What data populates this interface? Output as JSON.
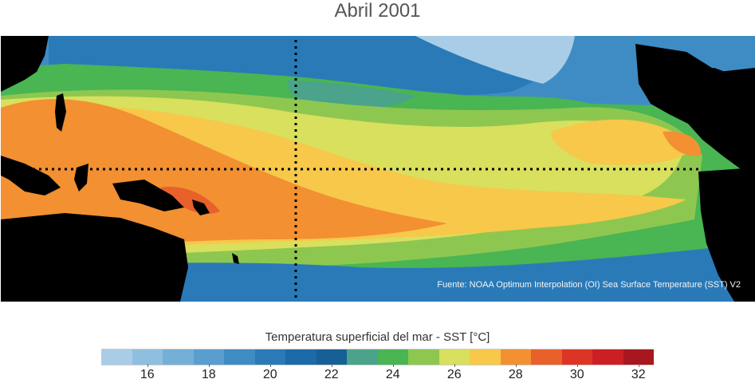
{
  "title": "Abril 2001",
  "source_note": "Fuente: NOAA Optimum Interpolation (OI) Sea Surface Temperature (SST) V2",
  "colorbar": {
    "title": "Temperatura superficial del mar - SST  [°C]",
    "tick_labels": [
      "16",
      "18",
      "20",
      "22",
      "24",
      "26",
      "28",
      "30",
      "32"
    ],
    "range": [
      15,
      33
    ],
    "colors": [
      "#a9cde6",
      "#8fbfe0",
      "#74afd8",
      "#5a9ecf",
      "#3f8cc4",
      "#2a7ab8",
      "#1c6aa8",
      "#176097",
      "#4aa38a",
      "#49b553",
      "#8ec750",
      "#d8e05e",
      "#f7c84a",
      "#f29032",
      "#e8602a",
      "#dc3525",
      "#cc1f24",
      "#a8171d"
    ]
  },
  "map": {
    "colors": {
      "land": "#000000",
      "sst_16": "#a9cde6",
      "sst_19": "#5a9ecf",
      "sst_21": "#2a7ab8",
      "sst_23": "#176097",
      "sst_24": "#4aa38a",
      "sst_25": "#49b553",
      "sst_26": "#8ec750",
      "sst_27": "#d8e05e",
      "sst_28": "#f7c84a",
      "sst_29": "#f29032",
      "sst_30": "#e8602a"
    }
  }
}
